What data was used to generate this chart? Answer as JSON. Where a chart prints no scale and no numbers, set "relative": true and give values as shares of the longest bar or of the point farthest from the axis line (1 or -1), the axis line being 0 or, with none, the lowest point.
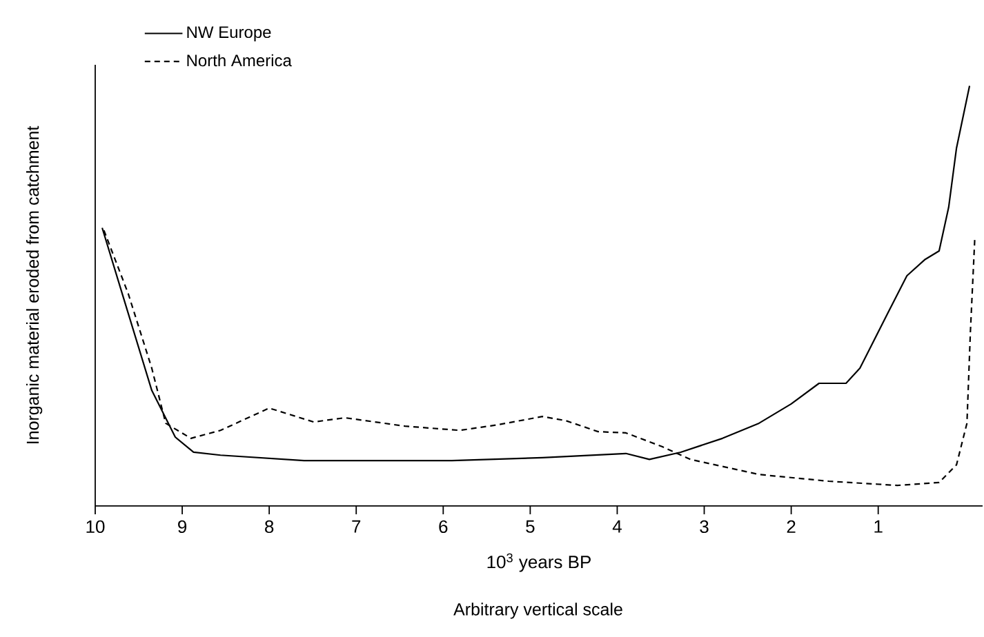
{
  "chart_data": {
    "type": "line",
    "relative": true,
    "ylabel": "Inorganic material eroded from catchment",
    "xlabel": "10$^{3}$ years BP",
    "annotations": [
      "Arbitrary vertical scale"
    ],
    "xlim": [
      10,
      -0.2
    ],
    "xticks": [
      10,
      9,
      8,
      7,
      6,
      5,
      4,
      3,
      2,
      1
    ],
    "legend": "top left",
    "series": [
      {
        "name": "NW Europe",
        "color": "#000000",
        "line_style": "solid",
        "x": [
          9.92,
          9.67,
          9.35,
          9.08,
          8.87,
          8.56,
          7.6,
          5.9,
          4.86,
          3.9,
          3.63,
          3.27,
          2.79,
          2.37,
          2.0,
          1.68,
          1.37,
          1.21,
          0.89,
          0.67,
          0.46,
          0.3,
          0.19,
          0.1,
          -0.05
        ],
        "values": [
          0.662,
          0.492,
          0.275,
          0.164,
          0.128,
          0.121,
          0.108,
          0.108,
          0.115,
          0.125,
          0.111,
          0.128,
          0.161,
          0.197,
          0.243,
          0.292,
          0.292,
          0.328,
          0.459,
          0.548,
          0.587,
          0.607,
          0.711,
          0.852,
          1.0
        ]
      },
      {
        "name": "North America",
        "color": "#000000",
        "line_style": "dashed",
        "x": [
          9.9,
          9.62,
          9.35,
          9.19,
          8.9,
          8.56,
          8.0,
          7.49,
          7.13,
          6.44,
          5.81,
          5.38,
          4.86,
          4.59,
          4.22,
          3.9,
          3.48,
          3.16,
          2.37,
          1.57,
          0.78,
          0.3,
          0.1,
          -0.02,
          -0.06,
          -0.11
        ],
        "values": [
          0.656,
          0.505,
          0.328,
          0.197,
          0.161,
          0.18,
          0.233,
          0.2,
          0.21,
          0.19,
          0.18,
          0.193,
          0.213,
          0.203,
          0.177,
          0.174,
          0.141,
          0.111,
          0.075,
          0.059,
          0.049,
          0.056,
          0.098,
          0.197,
          0.416,
          0.636
        ]
      }
    ]
  }
}
